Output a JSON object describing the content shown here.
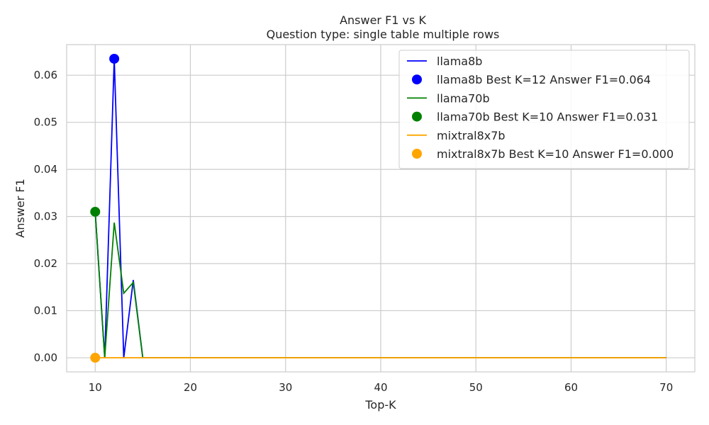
{
  "chart_data": {
    "type": "line",
    "title": "Answer F1 vs K",
    "subtitle": "Question type: single table multiple rows",
    "xlabel": "Top-K",
    "ylabel": "Answer F1",
    "xlim": [
      7,
      73
    ],
    "ylim": [
      -0.003,
      0.0665
    ],
    "xticks": [
      10,
      20,
      30,
      40,
      50,
      60,
      70
    ],
    "yticks": [
      0.0,
      0.01,
      0.02,
      0.03,
      0.04,
      0.05,
      0.06
    ],
    "ytick_labels": [
      "0.00",
      "0.01",
      "0.02",
      "0.03",
      "0.04",
      "0.05",
      "0.06"
    ],
    "grid": true,
    "legend_position": "top-right",
    "series": [
      {
        "name": "llama8b",
        "color": "#0000ff",
        "x": [
          10,
          11,
          12,
          13,
          14,
          15,
          70
        ],
        "y": [
          0.031,
          0.0,
          0.0635,
          0.0,
          0.0165,
          0.0,
          0.0
        ],
        "best_label": "llama8b Best K=12 Answer F1=0.064",
        "best": {
          "x": 12,
          "y": 0.0635
        }
      },
      {
        "name": "llama70b",
        "color": "#008000",
        "x": [
          10,
          11,
          12,
          13,
          14,
          15,
          70
        ],
        "y": [
          0.031,
          0.0,
          0.0287,
          0.0137,
          0.016,
          0.0,
          0.0
        ],
        "best_label": "llama70b Best K=10 Answer F1=0.031",
        "best": {
          "x": 10,
          "y": 0.031
        }
      },
      {
        "name": "mixtral8x7b",
        "color": "#ffa500",
        "x": [
          10,
          70
        ],
        "y": [
          0.0,
          0.0
        ],
        "best_label": "mixtral8x7b Best K=10 Answer F1=0.000",
        "best": {
          "x": 10,
          "y": 0.0
        }
      }
    ]
  }
}
